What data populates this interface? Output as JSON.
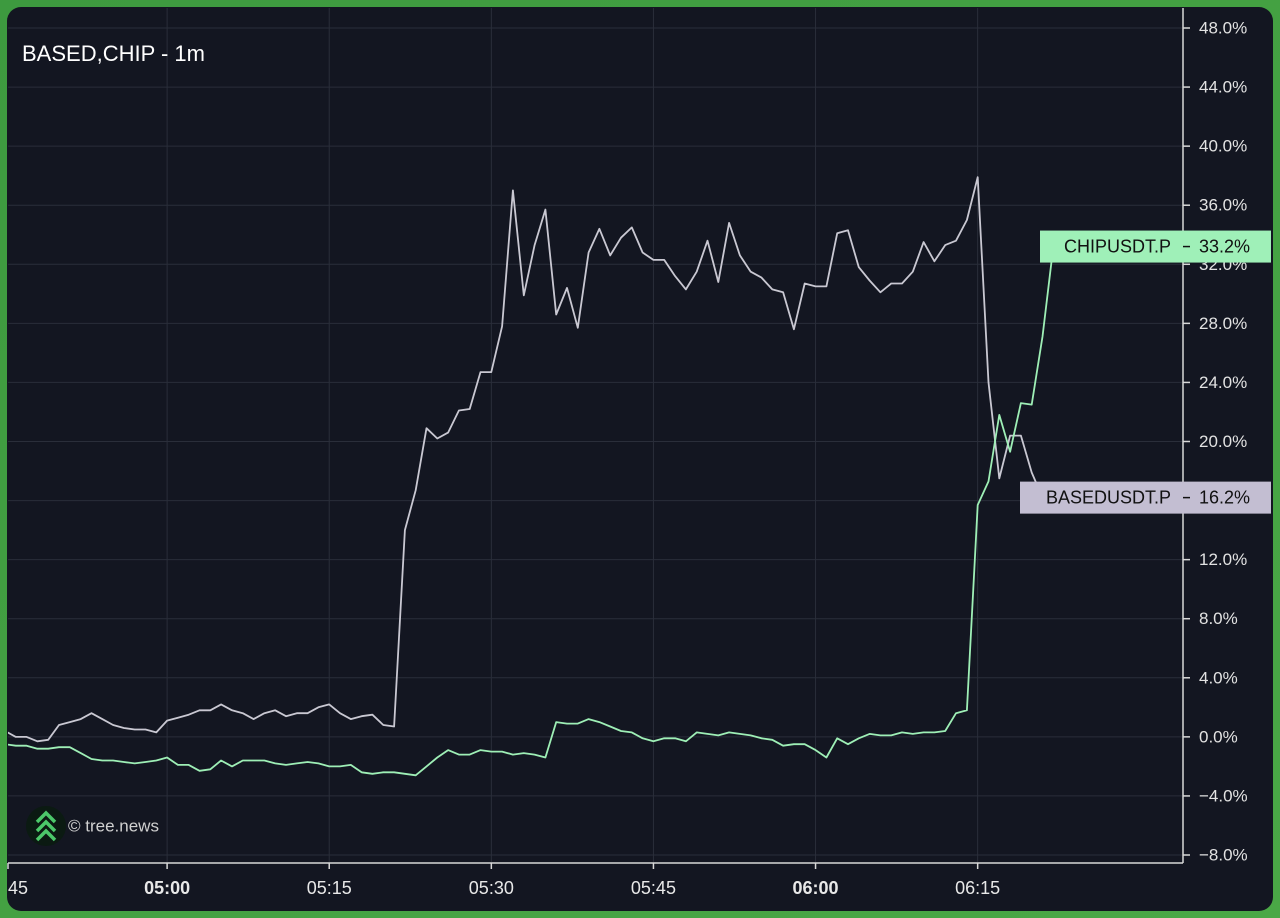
{
  "chart_data": {
    "type": "line",
    "title": "BASED,CHIP - 1m",
    "watermark": "© tree.news",
    "x": [
      "04:45",
      "04:46",
      "04:47",
      "04:48",
      "04:49",
      "04:50",
      "04:51",
      "04:52",
      "04:53",
      "04:54",
      "04:55",
      "04:56",
      "04:57",
      "04:58",
      "04:59",
      "05:00",
      "05:01",
      "05:02",
      "05:03",
      "05:04",
      "05:05",
      "05:06",
      "05:07",
      "05:08",
      "05:09",
      "05:10",
      "05:11",
      "05:12",
      "05:13",
      "05:14",
      "05:15",
      "05:16",
      "05:17",
      "05:18",
      "05:19",
      "05:20",
      "05:21",
      "05:22",
      "05:23",
      "05:24",
      "05:25",
      "05:26",
      "05:27",
      "05:28",
      "05:29",
      "05:30",
      "05:31",
      "05:32",
      "05:33",
      "05:34",
      "05:35",
      "05:36",
      "05:37",
      "05:38",
      "05:39",
      "05:40",
      "05:41",
      "05:42",
      "05:43",
      "05:44",
      "05:45",
      "05:46",
      "05:47",
      "05:48",
      "05:49",
      "05:50",
      "05:51",
      "05:52",
      "05:53",
      "05:54",
      "05:55",
      "05:56",
      "05:57",
      "05:58",
      "05:59",
      "06:00",
      "06:01",
      "06:02",
      "06:03",
      "06:04",
      "06:05",
      "06:06",
      "06:07",
      "06:08",
      "06:09",
      "06:10",
      "06:11",
      "06:12",
      "06:13",
      "06:14",
      "06:15",
      "06:16",
      "06:17",
      "06:18",
      "06:19",
      "06:20",
      "06:21",
      "06:22"
    ],
    "series": [
      {
        "name": "BASEDUSDT.P",
        "color": "#c9c8d2",
        "label_color": "#c3bed2",
        "last_value_label": "16.2%",
        "values": [
          0.4,
          0,
          0,
          -0.3,
          -0.2,
          0.8,
          1.0,
          1.2,
          1.6,
          1.2,
          0.8,
          0.6,
          0.5,
          0.5,
          0.3,
          1.1,
          1.3,
          1.5,
          1.8,
          1.8,
          2.2,
          1.8,
          1.6,
          1.2,
          1.6,
          1.8,
          1.4,
          1.6,
          1.6,
          2.0,
          2.2,
          1.6,
          1.2,
          1.4,
          1.5,
          0.8,
          0.7,
          14.0,
          16.7,
          20.9,
          20.2,
          20.6,
          22.1,
          22.2,
          24.7,
          24.7,
          27.8,
          37.0,
          29.9,
          33.3,
          35.7,
          28.6,
          30.4,
          27.7,
          32.8,
          34.4,
          32.6,
          33.8,
          34.5,
          32.8,
          32.3,
          32.3,
          31.2,
          30.3,
          31.5,
          33.6,
          30.8,
          34.8,
          32.6,
          31.5,
          31.1,
          30.3,
          30.1,
          27.6,
          30.7,
          30.5,
          30.5,
          34.1,
          34.3,
          31.8,
          30.9,
          30.1,
          30.7,
          30.7,
          31.5,
          33.5,
          32.2,
          33.3,
          33.6,
          35.0,
          37.9,
          24.0,
          17.5,
          20.4,
          20.4,
          17.9,
          16.2,
          null
        ]
      },
      {
        "name": "CHIPUSDT.P",
        "color": "#9eefb6",
        "label_color": "#9ff0b8",
        "last_value_label": "33.2%",
        "values": [
          -0.5,
          -0.6,
          -0.6,
          -0.8,
          -0.8,
          -0.7,
          -0.7,
          -1.1,
          -1.5,
          -1.6,
          -1.6,
          -1.7,
          -1.8,
          -1.7,
          -1.6,
          -1.4,
          -1.9,
          -1.9,
          -2.3,
          -2.2,
          -1.6,
          -2.0,
          -1.6,
          -1.6,
          -1.6,
          -1.8,
          -1.9,
          -1.8,
          -1.7,
          -1.8,
          -2.0,
          -2.0,
          -1.9,
          -2.4,
          -2.5,
          -2.4,
          -2.4,
          -2.5,
          -2.6,
          -2.0,
          -1.4,
          -0.9,
          -1.2,
          -1.2,
          -0.9,
          -1.0,
          -1.0,
          -1.2,
          -1.1,
          -1.2,
          -1.4,
          1.0,
          0.9,
          0.9,
          1.2,
          1.0,
          0.7,
          0.4,
          0.3,
          -0.1,
          -0.3,
          -0.1,
          -0.1,
          -0.3,
          0.3,
          0.2,
          0.1,
          0.3,
          0.2,
          0.1,
          -0.1,
          -0.2,
          -0.6,
          -0.5,
          -0.5,
          -0.9,
          -1.4,
          -0.1,
          -0.5,
          -0.1,
          0.2,
          0.1,
          0.1,
          0.3,
          0.2,
          0.3,
          0.3,
          0.4,
          1.6,
          1.8,
          15.7,
          17.3,
          21.8,
          19.3,
          22.6,
          22.5,
          27.1,
          33.2
        ]
      }
    ],
    "xlim": [
      "04:45",
      "06:34"
    ],
    "xticks": [
      {
        "value": "04:45",
        "label": "45"
      },
      "05:00",
      "05:15",
      "05:30",
      "05:45",
      "06:00",
      "06:15"
    ],
    "bold_xticks": [
      "05:00",
      "06:00"
    ],
    "ylim": [
      -8,
      48
    ],
    "yticks": [
      {
        "value": -8,
        "label": "−8.0%"
      },
      {
        "value": -4,
        "label": "−4.0%"
      },
      {
        "value": 0,
        "label": "0.0%"
      },
      {
        "value": 4,
        "label": "4.0%"
      },
      {
        "value": 8,
        "label": "8.0%"
      },
      {
        "value": 12,
        "label": "12.0%"
      },
      {
        "value": 16,
        "label": "16.0%"
      },
      {
        "value": 20,
        "label": "20.0%"
      },
      {
        "value": 24,
        "label": "24.0%"
      },
      {
        "value": 28,
        "label": "28.0%"
      },
      {
        "value": 32,
        "label": "32.0%"
      },
      {
        "value": 36,
        "label": "36.0%"
      },
      {
        "value": 40,
        "label": "40.0%"
      },
      {
        "value": 44,
        "label": "44.0%"
      },
      {
        "value": 48,
        "label": "48.0%"
      }
    ],
    "grid": true
  }
}
